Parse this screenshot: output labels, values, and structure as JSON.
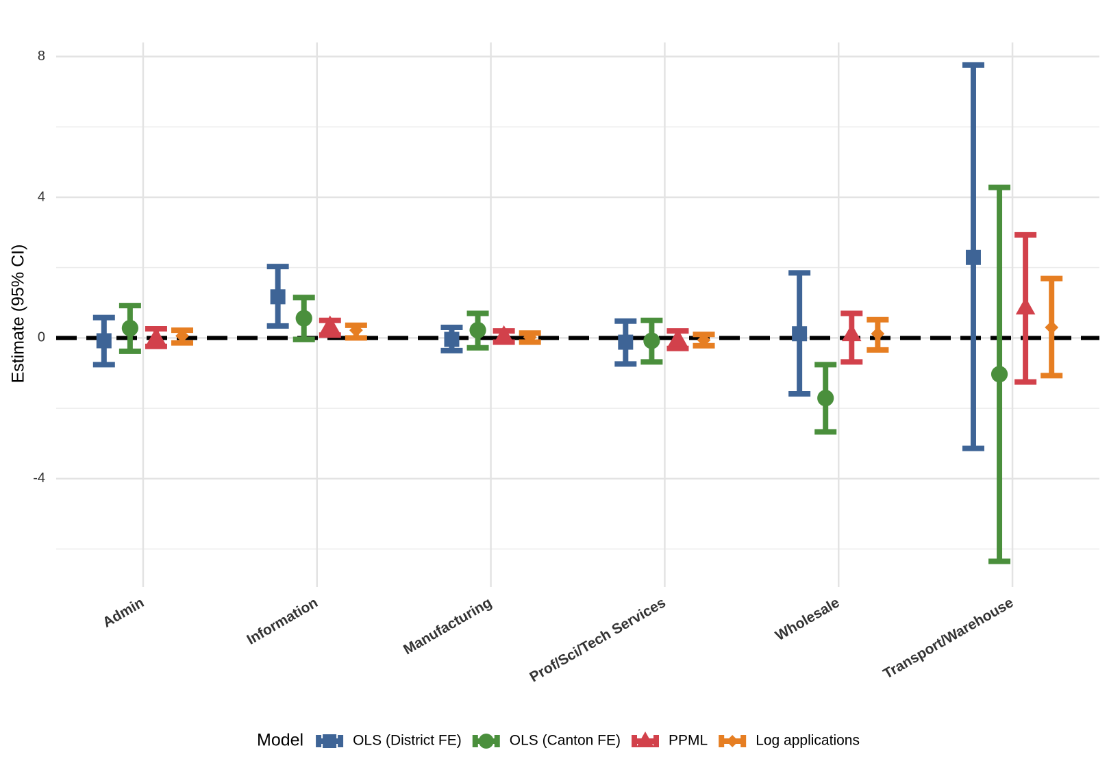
{
  "chart_data": {
    "type": "errorbar",
    "y_label": "Estimate (95% CI)",
    "categories": [
      "Admin",
      "Information",
      "Manufacturing",
      "Prof/Sci/Tech Services",
      "Wholesale",
      "Transport/Warehouse"
    ],
    "ylim": [
      -7.08,
      8.4
    ],
    "yticks": [
      -4,
      0,
      4,
      8
    ],
    "grid": true,
    "hline": 0,
    "legend_title": "Model",
    "legend_position": "bottom",
    "series": [
      {
        "name": "OLS (District FE)",
        "color": "#3e6496",
        "shape": "square",
        "values": [
          -0.08,
          1.17,
          -0.04,
          -0.12,
          0.12,
          2.29
        ],
        "lower": [
          -0.76,
          0.34,
          -0.36,
          -0.74,
          -1.59,
          -3.14
        ],
        "upper": [
          0.58,
          2.03,
          0.3,
          0.48,
          1.85,
          7.76
        ]
      },
      {
        "name": "OLS (Canton FE)",
        "color": "#4a8f3c",
        "shape": "circle",
        "values": [
          0.28,
          0.56,
          0.22,
          -0.08,
          -1.71,
          -1.03
        ],
        "lower": [
          -0.38,
          -0.04,
          -0.28,
          -0.68,
          -2.67,
          -6.35
        ],
        "upper": [
          0.92,
          1.15,
          0.7,
          0.5,
          -0.76,
          4.28
        ]
      },
      {
        "name": "PPML",
        "color": "#d2414b",
        "shape": "triangle",
        "values": [
          0.0,
          0.34,
          0.06,
          -0.04,
          0.1,
          0.86
        ],
        "lower": [
          -0.24,
          0.08,
          -0.12,
          -0.3,
          -0.68,
          -1.25
        ],
        "upper": [
          0.26,
          0.5,
          0.2,
          0.2,
          0.7,
          2.93
        ]
      },
      {
        "name": "Log applications",
        "color": "#e67e22",
        "shape": "diamond",
        "values": [
          0.06,
          0.22,
          0.02,
          -0.06,
          0.12,
          0.3
        ],
        "lower": [
          -0.14,
          0.0,
          -0.12,
          -0.22,
          -0.34,
          -1.07
        ],
        "upper": [
          0.22,
          0.36,
          0.14,
          0.1,
          0.52,
          1.69
        ]
      }
    ]
  }
}
